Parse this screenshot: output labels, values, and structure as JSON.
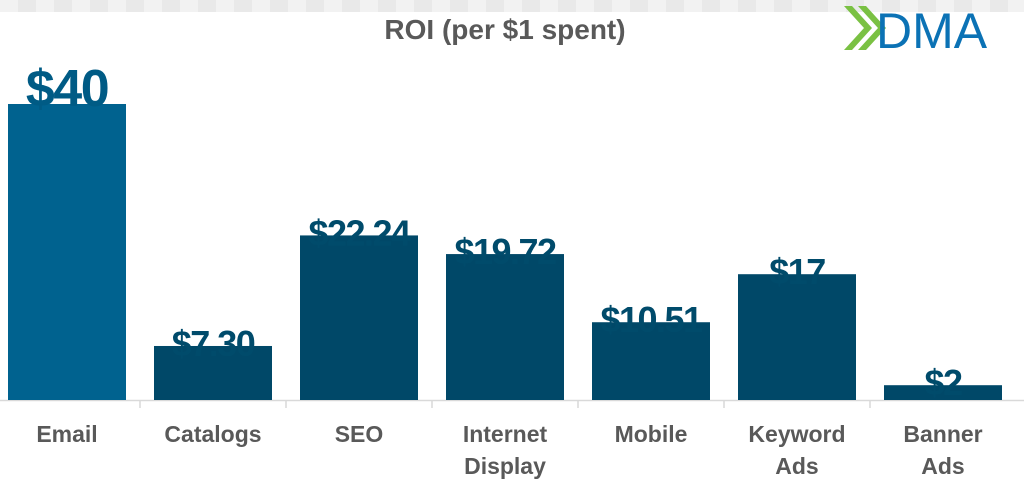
{
  "chart_data": {
    "type": "bar",
    "title": "ROI (per $1 spent)",
    "categories": [
      [
        "Email"
      ],
      [
        "Catalogs"
      ],
      [
        "SEO"
      ],
      [
        "Internet",
        "Display"
      ],
      [
        "Mobile"
      ],
      [
        "Keyword",
        "Ads"
      ],
      [
        "Banner",
        "Ads"
      ]
    ],
    "values": [
      40,
      7.3,
      22.24,
      19.72,
      10.51,
      17,
      2
    ],
    "data_labels": [
      "$40",
      "$7.30",
      "$22.24",
      "$19.72",
      "$10.51",
      "$17",
      "$2"
    ],
    "xlabel": "",
    "ylabel": "",
    "ylim": [
      0,
      40
    ],
    "grid": false,
    "legend": "none",
    "colors": {
      "highlight_bar": "#00628f",
      "bar": "#004868",
      "data_label": "#004b6b",
      "highlight_label": "#005b85",
      "tick_label": "#595959",
      "axis": "#d9d9d9"
    }
  },
  "logo": {
    "text": "DMA",
    "chevron_color": "#7ac143",
    "text_color": "#0b72b5"
  }
}
